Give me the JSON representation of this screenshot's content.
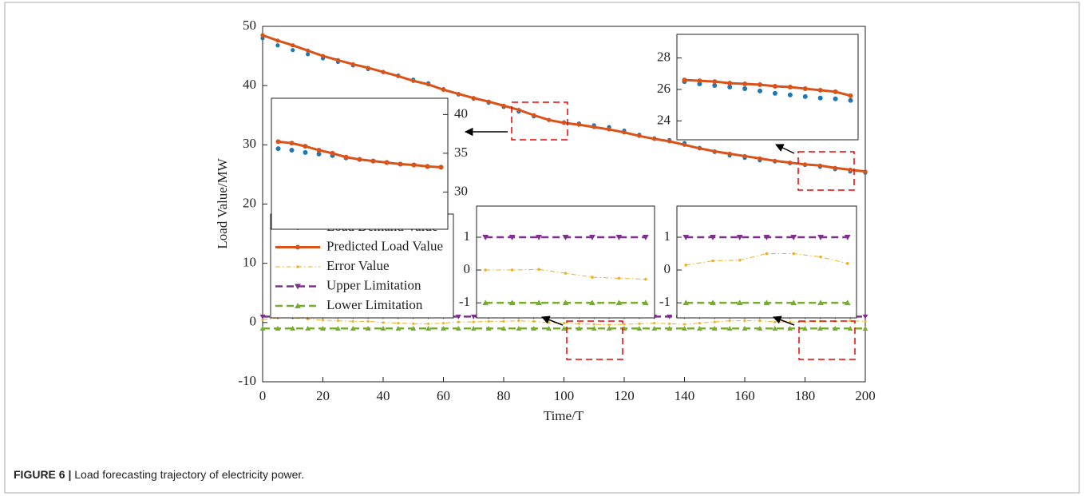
{
  "chart_data": [
    {
      "type": "line",
      "x_label": "Time/T",
      "y_label": "Load Value/MW",
      "xlim": [
        0,
        200
      ],
      "ylim": [
        -10,
        50
      ],
      "xticks": [
        0,
        20,
        40,
        60,
        80,
        100,
        120,
        140,
        160,
        180,
        200
      ],
      "yticks": [
        -10,
        0,
        10,
        20,
        30,
        40,
        50
      ],
      "legend": "center left",
      "x": [
        0,
        5,
        10,
        15,
        20,
        25,
        30,
        35,
        40,
        45,
        50,
        55,
        60,
        65,
        70,
        75,
        80,
        85,
        90,
        95,
        100,
        105,
        110,
        115,
        120,
        125,
        130,
        135,
        140,
        145,
        150,
        155,
        160,
        165,
        170,
        175,
        180,
        185,
        190,
        195,
        200
      ],
      "series": [
        {
          "name": "Load Demand Value",
          "color": "#1f77b4",
          "marker": "o",
          "line": "none",
          "values": [
            48.0,
            46.8,
            46.0,
            45.3,
            44.6,
            44.0,
            43.4,
            42.8,
            42.3,
            41.7,
            41.0,
            40.4,
            39.4,
            38.5,
            37.8,
            37.1,
            36.4,
            35.6,
            34.8,
            34.2,
            33.8,
            33.6,
            33.3,
            33.0,
            32.4,
            31.7,
            31.1,
            30.8,
            30.3,
            29.5,
            28.8,
            28.2,
            27.8,
            27.4,
            27.2,
            26.9,
            26.6,
            26.3,
            25.9,
            25.5,
            25.3
          ]
        },
        {
          "name": "Predicted Load Value",
          "color": "#d95319",
          "marker": "o",
          "line": "solid",
          "values": [
            48.5,
            47.6,
            46.8,
            45.9,
            45.0,
            44.3,
            43.6,
            43.0,
            42.3,
            41.6,
            40.8,
            40.2,
            39.3,
            38.6,
            37.9,
            37.3,
            36.6,
            35.9,
            35.0,
            34.2,
            33.7,
            33.4,
            33.0,
            32.6,
            32.1,
            31.5,
            31.0,
            30.6,
            30.0,
            29.4,
            28.9,
            28.5,
            28.1,
            27.7,
            27.3,
            27.0,
            26.7,
            26.5,
            26.1,
            25.8,
            25.5
          ]
        },
        {
          "name": "Error Value",
          "color": "#edb120",
          "marker": "*",
          "line": "dashdot",
          "values": [
            0.5,
            0.8,
            0.8,
            0.6,
            0.4,
            0.3,
            0.2,
            0.2,
            0,
            -0.1,
            -0.2,
            -0.2,
            -0.1,
            0.1,
            0.1,
            0.2,
            0.2,
            0.3,
            0.2,
            0,
            -0.1,
            -0.2,
            -0.3,
            -0.4,
            -0.3,
            -0.2,
            -0.1,
            -0.2,
            -0.3,
            -0.1,
            0.1,
            0.3,
            0.3,
            0.3,
            0.1,
            0.1,
            0.1,
            0.2,
            0.2,
            0.3,
            0.2
          ]
        },
        {
          "name": "Upper Limitation",
          "color": "#7e2f8e",
          "marker": "v",
          "line": "dashed",
          "values": [
            1,
            1,
            1,
            1,
            1,
            1,
            1,
            1,
            1,
            1,
            1,
            1,
            1,
            1,
            1,
            1,
            1,
            1,
            1,
            1,
            1,
            1,
            1,
            1,
            1,
            1,
            1,
            1,
            1,
            1,
            1,
            1,
            1,
            1,
            1,
            1,
            1,
            1,
            1,
            1,
            1
          ]
        },
        {
          "name": "Lower Limitation",
          "color": "#77ac30",
          "marker": "^",
          "line": "dashed",
          "values": [
            -1,
            -1,
            -1,
            -1,
            -1,
            -1,
            -1,
            -1,
            -1,
            -1,
            -1,
            -1,
            -1,
            -1,
            -1,
            -1,
            -1,
            -1,
            -1,
            -1,
            -1,
            -1,
            -1,
            -1,
            -1,
            -1,
            -1,
            -1,
            -1,
            -1,
            -1,
            -1,
            -1,
            -1,
            -1,
            -1,
            -1,
            -1,
            -1,
            -1,
            -1
          ]
        }
      ]
    },
    {
      "type": "line",
      "xlim": [
        185.5,
        197.5
      ],
      "ylim": [
        22.8,
        29.5
      ],
      "yticks": [
        24,
        26,
        28
      ],
      "x": [
        186,
        187,
        188,
        189,
        190,
        191,
        192,
        193,
        194,
        195,
        196,
        197
      ],
      "series": [
        {
          "color": "#1f77b4",
          "marker": "o",
          "line": "none",
          "values": [
            26.5,
            26.35,
            26.25,
            26.15,
            26.05,
            25.9,
            25.75,
            25.65,
            25.55,
            25.45,
            25.4,
            25.3
          ]
        },
        {
          "color": "#d95319",
          "marker": "o",
          "line": "solid",
          "values": [
            26.6,
            26.55,
            26.5,
            26.4,
            26.35,
            26.3,
            26.2,
            26.15,
            26.05,
            25.95,
            25.85,
            25.6
          ]
        }
      ]
    },
    {
      "type": "line",
      "xlim": [
        82.5,
        95.5
      ],
      "ylim": [
        25.2,
        42.1
      ],
      "yticks": [
        30,
        35,
        40
      ],
      "ytick_side": "right",
      "x": [
        83,
        84,
        85,
        86,
        87,
        88,
        89,
        90,
        91,
        92,
        93,
        94,
        95
      ],
      "series": [
        {
          "color": "#1f77b4",
          "marker": "o",
          "line": "none",
          "values": [
            35.6,
            35.4,
            35.1,
            34.9,
            34.7,
            34.4,
            34.2,
            34.0,
            33.8,
            33.6,
            33.5,
            33.3,
            33.2
          ]
        },
        {
          "color": "#d95319",
          "marker": "o",
          "line": "solid",
          "values": [
            36.5,
            36.3,
            35.9,
            35.4,
            35.0,
            34.5,
            34.2,
            34.0,
            33.8,
            33.6,
            33.5,
            33.3,
            33.2
          ]
        }
      ]
    },
    {
      "type": "line",
      "xlim": [
        101,
        121
      ],
      "ylim": [
        -1.46,
        1.95
      ],
      "yticks": [
        -1,
        0,
        1
      ],
      "x": [
        102,
        105,
        108,
        111,
        114,
        117,
        120
      ],
      "series": [
        {
          "color": "#7e2f8e",
          "marker": "v",
          "line": "dashed",
          "values": [
            1,
            1,
            1,
            1,
            1,
            1,
            1
          ]
        },
        {
          "color": "#edb120",
          "marker": "*",
          "line": "dashdot",
          "values": [
            0,
            0,
            0.02,
            -0.1,
            -0.22,
            -0.25,
            -0.28
          ]
        },
        {
          "color": "#77ac30",
          "marker": "^",
          "line": "dashed",
          "values": [
            -1,
            -1,
            -1,
            -1,
            -1,
            -1,
            -1
          ]
        }
      ]
    },
    {
      "type": "line",
      "xlim": [
        179,
        199
      ],
      "ylim": [
        -1.46,
        1.95
      ],
      "yticks": [
        -1,
        0,
        1
      ],
      "x": [
        180,
        183,
        186,
        189,
        192,
        195,
        198
      ],
      "series": [
        {
          "color": "#7e2f8e",
          "marker": "v",
          "line": "dashed",
          "values": [
            1,
            1,
            1,
            1,
            1,
            1,
            1
          ]
        },
        {
          "color": "#edb120",
          "marker": "*",
          "line": "dashdot",
          "values": [
            0.15,
            0.28,
            0.3,
            0.5,
            0.5,
            0.4,
            0.2
          ]
        },
        {
          "color": "#77ac30",
          "marker": "^",
          "line": "dashed",
          "values": [
            -1,
            -1,
            -1,
            -1,
            -1,
            -1,
            -1
          ]
        }
      ]
    }
  ],
  "caption": {
    "label": "FIGURE 6 |",
    "text": "Load forecasting trajectory of electricity power."
  }
}
